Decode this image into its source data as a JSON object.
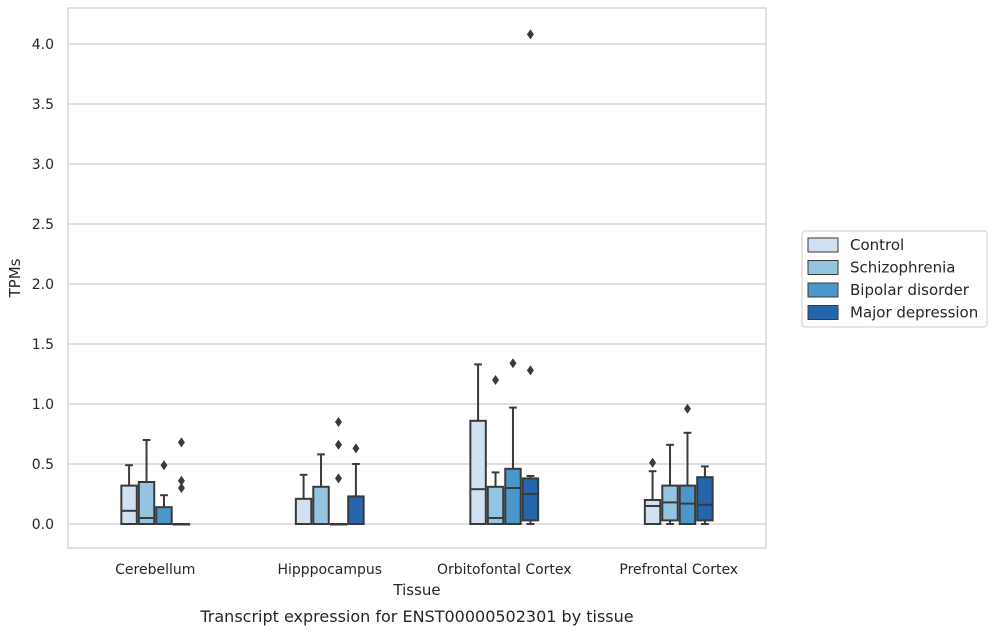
{
  "chart_data": {
    "type": "box",
    "title": "",
    "caption": "Transcript expression for ENST00000502301 by tissue",
    "xlabel": "Tissue",
    "ylabel": "TPMs",
    "ylim": [
      -0.2,
      4.3
    ],
    "yticks": [
      "0.0",
      "0.5",
      "1.0",
      "1.5",
      "2.0",
      "2.5",
      "3.0",
      "3.5",
      "4.0"
    ],
    "grid": true,
    "legend_position": "right",
    "categories": [
      "Cerebellum",
      "Hipppocampus",
      "Orbitofontal Cortex",
      "Prefrontal Cortex"
    ],
    "series": [
      {
        "name": "Control",
        "color": "#d0e1f2",
        "boxes": [
          {
            "min": 0.0,
            "q1": 0.0,
            "median": 0.11,
            "q3": 0.32,
            "max": 0.49,
            "outliers": []
          },
          {
            "min": 0.0,
            "q1": 0.0,
            "median": 0.0,
            "q3": 0.21,
            "max": 0.41,
            "outliers": []
          },
          {
            "min": 0.0,
            "q1": 0.0,
            "median": 0.29,
            "q3": 0.86,
            "max": 1.33,
            "outliers": []
          },
          {
            "min": 0.0,
            "q1": 0.0,
            "median": 0.15,
            "q3": 0.2,
            "max": 0.44,
            "outliers": [
              0.51
            ]
          }
        ]
      },
      {
        "name": "Schizophrenia",
        "color": "#94c4df",
        "boxes": [
          {
            "min": 0.0,
            "q1": 0.0,
            "median": 0.05,
            "q3": 0.35,
            "max": 0.7,
            "outliers": []
          },
          {
            "min": 0.0,
            "q1": 0.0,
            "median": 0.0,
            "q3": 0.31,
            "max": 0.58,
            "outliers": []
          },
          {
            "min": 0.0,
            "q1": 0.0,
            "median": 0.05,
            "q3": 0.31,
            "max": 0.43,
            "outliers": [
              1.2
            ]
          },
          {
            "min": 0.0,
            "q1": 0.03,
            "median": 0.18,
            "q3": 0.32,
            "max": 0.66,
            "outliers": []
          }
        ]
      },
      {
        "name": "Bipolar disorder",
        "color": "#4a98c9",
        "boxes": [
          {
            "min": 0.0,
            "q1": 0.0,
            "median": 0.0,
            "q3": 0.14,
            "max": 0.24,
            "outliers": [
              0.49
            ]
          },
          {
            "min": 0.0,
            "q1": 0.0,
            "median": 0.0,
            "q3": 0.0,
            "max": 0.0,
            "outliers": [
              0.38,
              0.66,
              0.85
            ]
          },
          {
            "min": 0.0,
            "q1": 0.0,
            "median": 0.3,
            "q3": 0.46,
            "max": 0.97,
            "outliers": [
              1.34
            ]
          },
          {
            "min": 0.0,
            "q1": 0.0,
            "median": 0.17,
            "q3": 0.32,
            "max": 0.76,
            "outliers": [
              0.96
            ]
          }
        ]
      },
      {
        "name": "Major depression",
        "color": "#2565ab",
        "boxes": [
          {
            "min": 0.0,
            "q1": 0.0,
            "median": 0.0,
            "q3": 0.0,
            "max": 0.0,
            "outliers": [
              0.3,
              0.36,
              0.68
            ]
          },
          {
            "min": 0.0,
            "q1": 0.0,
            "median": 0.0,
            "q3": 0.23,
            "max": 0.5,
            "outliers": [
              0.63
            ]
          },
          {
            "min": 0.0,
            "q1": 0.03,
            "median": 0.25,
            "q3": 0.38,
            "max": 0.4,
            "outliers": [
              1.28,
              4.08
            ]
          },
          {
            "min": 0.0,
            "q1": 0.03,
            "median": 0.16,
            "q3": 0.39,
            "max": 0.48,
            "outliers": []
          }
        ]
      }
    ]
  }
}
